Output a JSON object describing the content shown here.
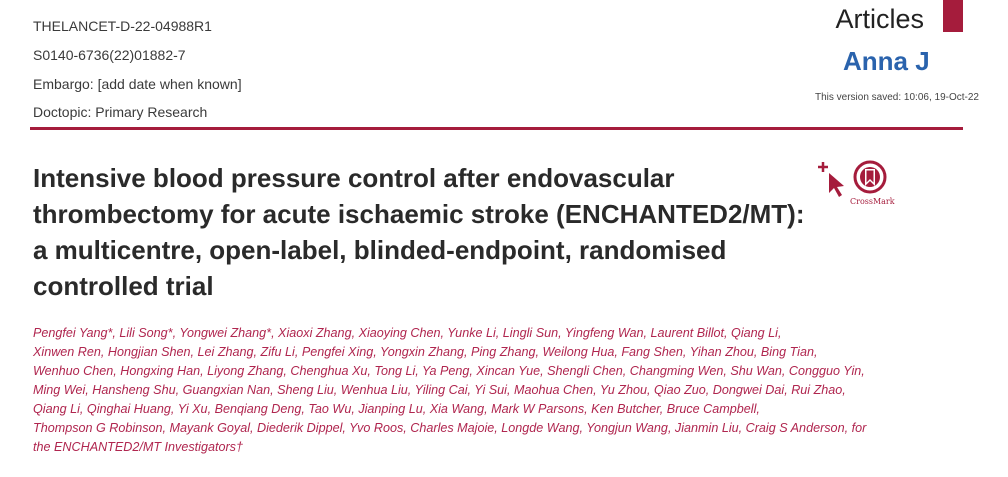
{
  "header": {
    "manuscript_id": "THELANCET-D-22-04988R1",
    "pii": "S0140-6736(22)01882-7",
    "embargo": "Embargo: [add date when known]",
    "doctopic": "Doctopic: Primary Research",
    "section": "Articles",
    "editor": "Anna J",
    "version_saved": "This version saved: 10:06, 19-Oct-22",
    "accent_color": "#a51c3c",
    "editor_color": "#2a63ad"
  },
  "title": "Intensive blood pressure control after endovascular thrombectomy for acute ischaemic stroke (ENCHANTED2/MT): a multicentre, open-label, blinded-endpoint, randomised controlled trial",
  "crossmark": {
    "label": "CrossMark",
    "icon": "crossmark-bookmark-icon"
  },
  "cursor_icon": "add-cursor-icon",
  "authors_lines": [
    "Pengfei Yang*, Lili Song*, Yongwei Zhang*, Xiaoxi Zhang, Xiaoying Chen, Yunke Li, Lingli Sun, Yingfeng Wan, Laurent Billot, Qiang Li,",
    "Xinwen Ren, Hongjian Shen, Lei Zhang, Zifu Li, Pengfei Xing, Yongxin Zhang, Ping Zhang, Weilong Hua, Fang Shen, Yihan Zhou, Bing Tian,",
    "Wenhuo Chen, Hongxing Han, Liyong Zhang, Chenghua Xu, Tong Li, Ya Peng, Xincan Yue, Shengli Chen, Changming Wen, Shu Wan, Congguo Yin,",
    "Ming Wei, Hansheng Shu, Guangxian Nan, Sheng Liu, Wenhua Liu, Yiling Cai, Yi Sui, Maohua Chen, Yu Zhou, Qiao Zuo, Dongwei Dai, Rui Zhao,",
    "Qiang Li, Qinghai Huang, Yi Xu, Benqiang Deng, Tao Wu, Jianping Lu, Xia Wang, Mark W Parsons, Ken Butcher, Bruce Campbell,",
    "Thompson G Robinson, Mayank Goyal, Diederik Dippel, Yvo Roos, Charles Majoie, Longde Wang, Yongjun Wang, Jianmin Liu, Craig S Anderson, for",
    "the ENCHANTED2/MT Investigators†"
  ]
}
